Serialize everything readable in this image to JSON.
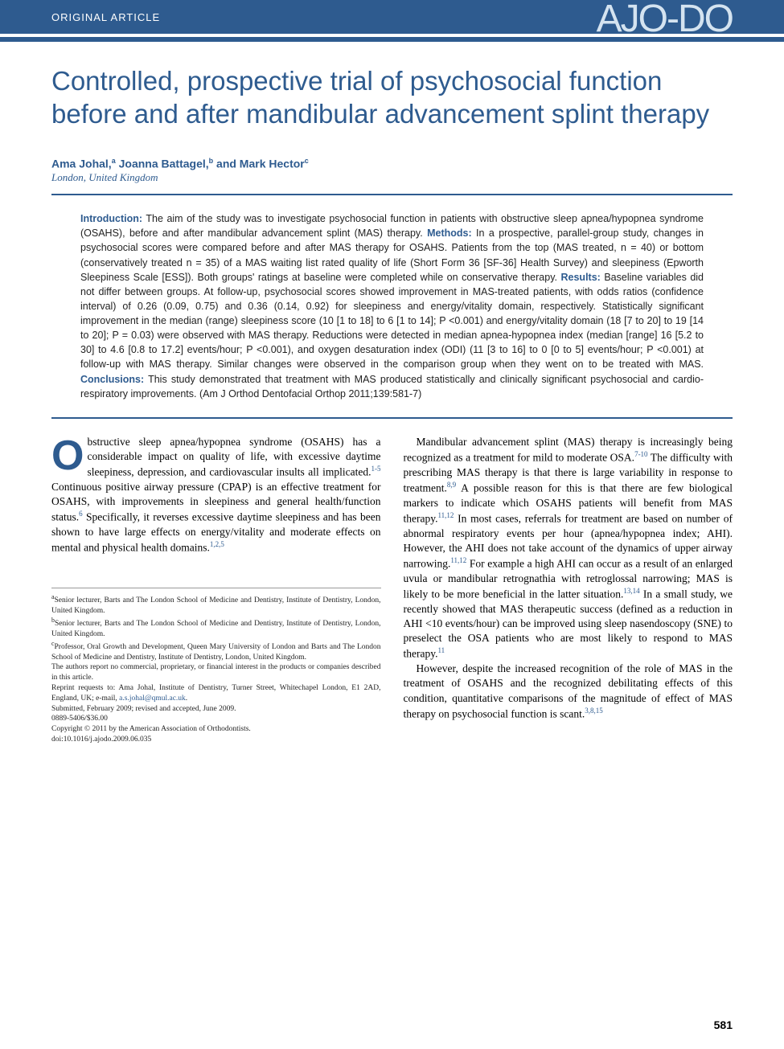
{
  "header": {
    "article_type": "ORIGINAL ARTICLE",
    "journal_logo": "AJO-DO"
  },
  "title": "Controlled, prospective trial of psychosocial function before and after mandibular advancement splint therapy",
  "authors_html": "Ama Johal,<sup>a</sup> Joanna Battagel,<sup>b</sup> and Mark Hector<sup>c</sup>",
  "location": "London, United Kingdom",
  "abstract": {
    "intro_label": "Introduction:",
    "intro": " The aim of the study was to investigate psychosocial function in patients with obstructive sleep apnea/hypopnea syndrome (OSAHS), before and after mandibular advancement splint (MAS) therapy. ",
    "methods_label": "Methods:",
    "methods": " In a prospective, parallel-group study, changes in psychosocial scores were compared before and after MAS therapy for OSAHS. Patients from the top (MAS treated, n = 40) or bottom (conservatively treated n = 35) of a MAS waiting list rated quality of life (Short Form 36 [SF-36] Health Survey) and sleepiness (Epworth Sleepiness Scale [ESS]). Both groups' ratings at baseline were completed while on conservative therapy. ",
    "results_label": "Results:",
    "results": " Baseline variables did not differ between groups. At follow-up, psychosocial scores showed improvement in MAS-treated patients, with odds ratios (confidence interval) of 0.26 (0.09, 0.75) and 0.36 (0.14, 0.92) for sleepiness and energy/vitality domain, respectively. Statistically significant improvement in the median (range) sleepiness score (10 [1 to 18] to 6 [1 to 14]; P <0.001) and energy/vitality domain (18 [7 to 20] to 19 [14 to 20]; P = 0.03) were observed with MAS therapy. Reductions were detected in median apnea-hypopnea index (median [range] 16 [5.2 to 30] to 4.6 [0.8 to 17.2] events/hour; P <0.001), and oxygen desaturation index (ODI) (11 [3 to 16] to 0 [0 to 5] events/hour; P <0.001) at follow-up with MAS therapy. Similar changes were observed in the comparison group when they went on to be treated with MAS. ",
    "conclusions_label": "Conclusions:",
    "conclusions": " This study demonstrated that treatment with MAS produced statistically and clinically significant psychosocial and cardio-respiratory improvements. (Am J Orthod Dentofacial Orthop 2011;139:581-7)"
  },
  "body": {
    "col1_p1_dropcap": "O",
    "col1_p1": "bstructive sleep apnea/hypopnea syndrome (OSAHS) has a considerable impact on quality of life, with excessive daytime sleepiness, depression, and cardiovascular insults all implicated.",
    "col1_p1_ref": "1-5",
    "col1_p1b": " Continuous positive airway pressure (CPAP) is an effective treatment for OSAHS, with improvements in sleepiness and general health/function status.",
    "col1_p1_ref2": "6",
    "col1_p1c": " Specifically, it reverses excessive daytime sleepiness and has been shown to have large effects on energy/vitality and moderate effects on mental and physical health domains.",
    "col1_p1_ref3": "1,2,5",
    "col2_p1": "Mandibular advancement splint (MAS) therapy is increasingly being recognized as a treatment for mild to moderate OSA.",
    "col2_p1_ref": "7-10",
    "col2_p1b": " The difficulty with prescribing MAS therapy is that there is large variability in response to treatment.",
    "col2_p1_ref2": "8,9",
    "col2_p1c": " A possible reason for this is that there are few biological markers to indicate which OSAHS patients will benefit from MAS therapy.",
    "col2_p1_ref3": "11,12",
    "col2_p1d": " In most cases, referrals for treatment are based on number of abnormal respiratory events per hour (apnea/hypopnea index; AHI). However, the AHI does not take account of the dynamics of upper airway narrowing.",
    "col2_p1_ref4": "11,12",
    "col2_p1e": " For example a high AHI can occur as a result of an enlarged uvula or mandibular retrognathia with retroglossal narrowing; MAS is likely to be more beneficial in the latter situation.",
    "col2_p1_ref5": "13,14",
    "col2_p1f": " In a small study, we recently showed that MAS therapeutic success (defined as a reduction in AHI <10 events/hour) can be improved using sleep nasendoscopy (SNE) to preselect the OSA patients who are most likely to respond to MAS therapy.",
    "col2_p1_ref6": "11",
    "col2_p2": "However, despite the increased recognition of the role of MAS in the treatment of OSAHS and the recognized debilitating effects of this condition, quantitative comparisons of the magnitude of effect of MAS therapy on psychosocial function is scant.",
    "col2_p2_ref": "3,8,15"
  },
  "footnotes": {
    "a": "Senior lecturer, Barts and The London School of Medicine and Dentistry, Institute of Dentistry, London, United Kingdom.",
    "b": "Senior lecturer, Barts and The London School of Medicine and Dentistry, Institute of Dentistry, London, United Kingdom.",
    "c": "Professor, Oral Growth and Development, Queen Mary University of London and Barts and The London School of Medicine and Dentistry, Institute of Dentistry, London, United Kingdom.",
    "disclaimer": "The authors report no commercial, proprietary, or financial interest in the products or companies described in this article.",
    "reprint": "Reprint requests to: Ama Johal, Institute of Dentistry, Turner Street, Whitechapel London, E1 2AD, England, UK; e-mail, ",
    "email": "a.s.johal@qmul.ac.uk",
    "submitted": "Submitted, February 2009; revised and accepted, June 2009.",
    "issn": "0889-5406/$36.00",
    "copyright": "Copyright © 2011 by the American Association of Orthodontists.",
    "doi": "doi:10.1016/j.ajodo.2009.06.035"
  },
  "page_number": "581",
  "colors": {
    "primary": "#2e5b8f",
    "logo": "#d4e3f0",
    "text": "#222222",
    "white": "#ffffff"
  },
  "typography": {
    "title_size": 33,
    "body_size": 13.5,
    "abstract_size": 12.5,
    "footnote_size": 9.5
  }
}
